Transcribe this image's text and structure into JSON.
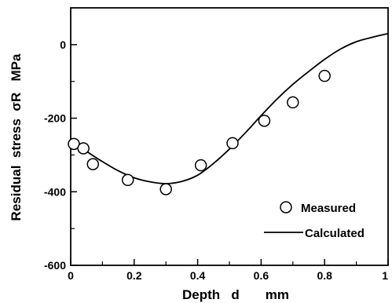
{
  "chart_data": {
    "type": "scatter",
    "title": "",
    "xlabel": "Depth   d       mm",
    "ylabel": "Residual  stress  σR   MPa",
    "xlim": [
      0,
      1
    ],
    "ylim": [
      -600,
      100
    ],
    "x_ticks": [
      "0",
      "0.2",
      "0.4",
      "0.6",
      "0.8",
      "1"
    ],
    "y_ticks": [
      "0",
      "-200",
      "-400",
      "-600"
    ],
    "grid": false,
    "legend_position": "bottom-right",
    "series": [
      {
        "name": "Measured",
        "kind": "scatter",
        "marker": "open-circle",
        "points": [
          {
            "x": 0.01,
            "y": -270
          },
          {
            "x": 0.04,
            "y": -282
          },
          {
            "x": 0.07,
            "y": -325
          },
          {
            "x": 0.18,
            "y": -368
          },
          {
            "x": 0.3,
            "y": -393
          },
          {
            "x": 0.41,
            "y": -328
          },
          {
            "x": 0.51,
            "y": -268
          },
          {
            "x": 0.61,
            "y": -207
          },
          {
            "x": 0.7,
            "y": -157
          },
          {
            "x": 0.8,
            "y": -85
          }
        ]
      },
      {
        "name": "Calculated",
        "kind": "line",
        "points": [
          {
            "x": 0.0,
            "y": -255
          },
          {
            "x": 0.05,
            "y": -290
          },
          {
            "x": 0.1,
            "y": -318
          },
          {
            "x": 0.15,
            "y": -343
          },
          {
            "x": 0.2,
            "y": -362
          },
          {
            "x": 0.25,
            "y": -373
          },
          {
            "x": 0.3,
            "y": -378
          },
          {
            "x": 0.35,
            "y": -372
          },
          {
            "x": 0.4,
            "y": -355
          },
          {
            "x": 0.45,
            "y": -323
          },
          {
            "x": 0.5,
            "y": -284
          },
          {
            "x": 0.55,
            "y": -240
          },
          {
            "x": 0.6,
            "y": -193
          },
          {
            "x": 0.65,
            "y": -148
          },
          {
            "x": 0.7,
            "y": -108
          },
          {
            "x": 0.75,
            "y": -73
          },
          {
            "x": 0.8,
            "y": -40
          },
          {
            "x": 0.85,
            "y": -12
          },
          {
            "x": 0.9,
            "y": 8
          },
          {
            "x": 0.95,
            "y": 20
          },
          {
            "x": 1.0,
            "y": 30
          }
        ]
      }
    ]
  }
}
